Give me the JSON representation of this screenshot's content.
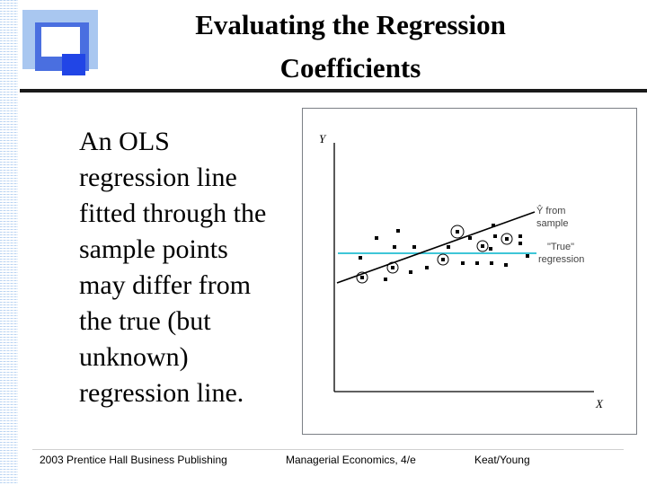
{
  "slide": {
    "title_line1": "Evaluating the Regression",
    "title_line2": "Coefficients",
    "body_lines": [
      "An OLS",
      "regression line",
      "fitted through the",
      "sample points",
      "may differ from",
      "the true (but",
      "unknown)",
      "regression line."
    ]
  },
  "figure": {
    "y_axis_label": "Y",
    "x_axis_label": "X",
    "sample_line_label": [
      "Ŷ from",
      "sample"
    ],
    "true_line_label": [
      "\"True\"",
      "regression"
    ],
    "sample_line_color": "#000000",
    "true_line_color": "#3ec6d8"
  },
  "footer": {
    "left": "2003 Prentice Hall Business Publishing",
    "center": "Managerial Economics, 4/e",
    "right": "Keat/Young"
  },
  "colors": {
    "logo_light": "#a9c7f0",
    "logo_mid": "#4a6fe0",
    "logo_dark": "#2145e6",
    "side_pattern": "#b9d3f2"
  }
}
